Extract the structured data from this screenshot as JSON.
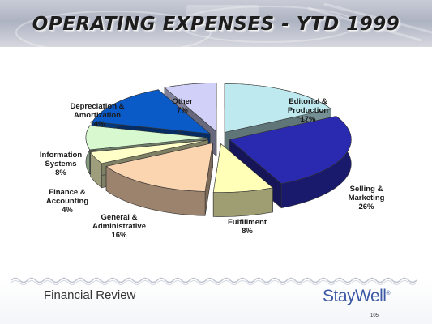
{
  "slide": {
    "title": "OPERATING EXPENSES - YTD 1999",
    "footer_text": "Financial Review",
    "logo_text": "StayWell",
    "logo_mark": "®",
    "page_number": "105"
  },
  "chart_data": {
    "type": "pie",
    "style": "3d-exploded",
    "title": "OPERATING EXPENSES - YTD 1999",
    "slices": [
      {
        "label_lines": [
          "Editorial &",
          "Production"
        ],
        "pct_label": "17%",
        "value": 17,
        "color": "#bde9ef"
      },
      {
        "label_lines": [
          "Selling &",
          "Marketing"
        ],
        "pct_label": "26%",
        "value": 26,
        "color": "#2a2ab0"
      },
      {
        "label_lines": [
          "Fulfillment"
        ],
        "pct_label": "8%",
        "value": 8,
        "color": "#ffffb8"
      },
      {
        "label_lines": [
          "General &",
          "Administrative"
        ],
        "pct_label": "16%",
        "value": 16,
        "color": "#fbd4b0"
      },
      {
        "label_lines": [
          "Finance &",
          "Accounting"
        ],
        "pct_label": "4%",
        "value": 4,
        "color": "#ffffc8"
      },
      {
        "label_lines": [
          "Information",
          "Systems"
        ],
        "pct_label": "8%",
        "value": 8,
        "color": "#d8f8d0"
      },
      {
        "label_lines": [
          "Depreciation &",
          "Amortization"
        ],
        "pct_label": "14%",
        "value": 14,
        "color": "#0a5ac8"
      },
      {
        "label_lines": [
          "Other"
        ],
        "pct_label": "7%",
        "value": 7,
        "color": "#d0d0f8"
      }
    ]
  }
}
